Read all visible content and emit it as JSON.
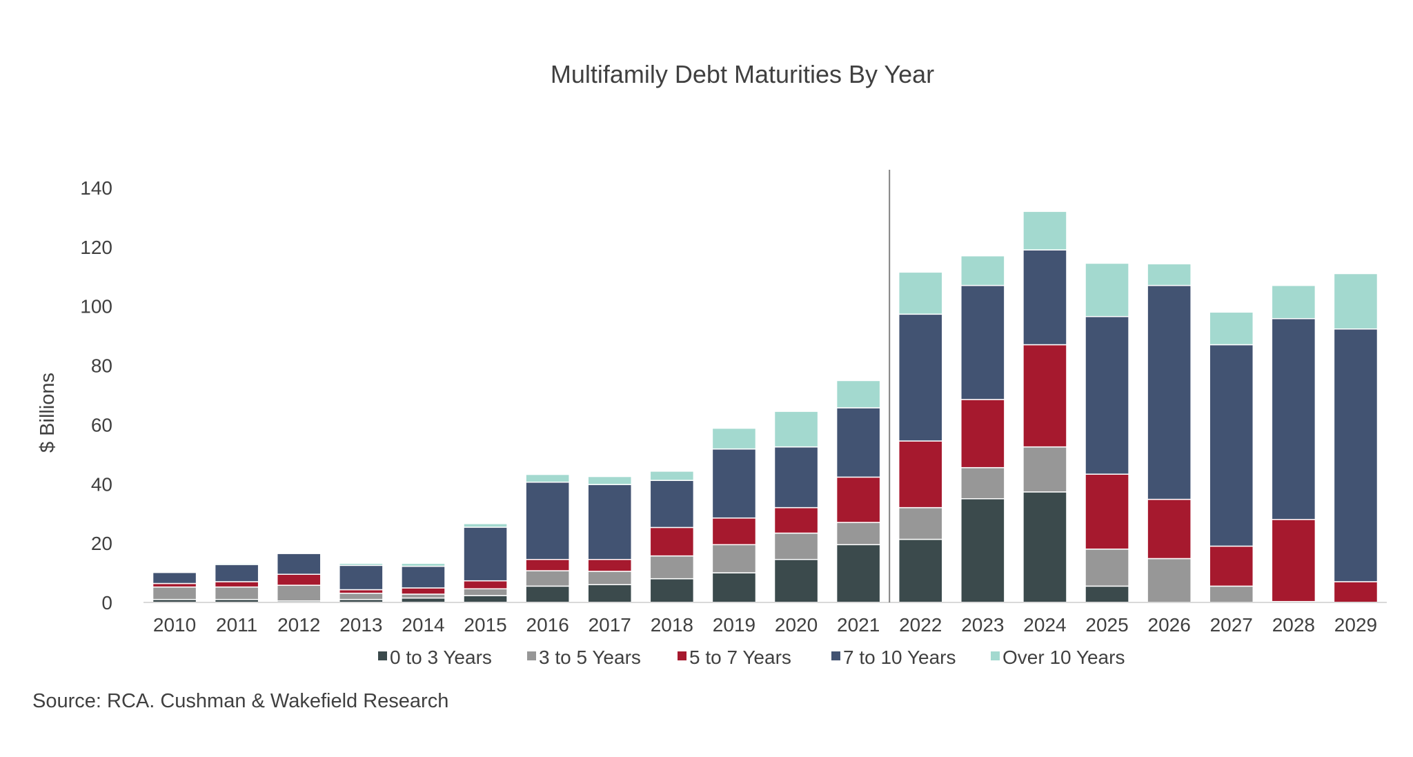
{
  "chart_data": {
    "type": "bar",
    "stacked": true,
    "title": "Multifamily Debt Maturities By Year",
    "xlabel": "",
    "ylabel": "$ Billions",
    "ylim": [
      0,
      140
    ],
    "yticks": [
      0,
      20,
      40,
      60,
      80,
      100,
      120,
      140
    ],
    "grid": false,
    "legend": "bottom",
    "divider_between": [
      "2021",
      "2022"
    ],
    "categories": [
      "2010",
      "2011",
      "2012",
      "2013",
      "2014",
      "2015",
      "2016",
      "2017",
      "2018",
      "2019",
      "2020",
      "2021",
      "2022",
      "2023",
      "2024",
      "2025",
      "2026",
      "2027",
      "2028",
      "2029"
    ],
    "series": [
      {
        "name": "0 to 3 Years",
        "color": "#3b4a4c",
        "values": [
          1,
          1,
          0.5,
          1,
          1.5,
          2.3,
          5.5,
          6,
          8,
          10,
          14.5,
          19.5,
          21.3,
          35,
          37.3,
          5.5,
          0,
          0,
          0,
          0
        ]
      },
      {
        "name": "3 to 5 Years",
        "color": "#979797",
        "values": [
          4.2,
          4.2,
          5.3,
          2.1,
          1.3,
          2.3,
          5.2,
          4.5,
          7.7,
          9.5,
          8.9,
          7.5,
          10.7,
          10.5,
          15.2,
          12.5,
          14.8,
          5.5,
          0.3,
          0
        ]
      },
      {
        "name": "5 to 7 Years",
        "color": "#a6192e",
        "values": [
          1.2,
          1.8,
          3.7,
          1.2,
          2.1,
          2.7,
          3.8,
          4,
          9.6,
          9,
          8.6,
          15.3,
          22.5,
          23,
          34.5,
          25.3,
          20,
          13.5,
          27.7,
          7
        ]
      },
      {
        "name": "7 to 10 Years",
        "color": "#425372",
        "values": [
          3.7,
          5.8,
          7,
          8.2,
          7.3,
          18.1,
          26.1,
          25.3,
          15.9,
          23.3,
          20.5,
          23.4,
          42.8,
          38.5,
          32,
          53.2,
          72.2,
          68,
          67.8,
          85.3
        ]
      },
      {
        "name": "Over 10 Years",
        "color": "#a3d9cf",
        "values": [
          0,
          0.4,
          0,
          0.7,
          1,
          1.2,
          2.6,
          2.7,
          3.1,
          7,
          12,
          9.2,
          14.2,
          10,
          13,
          18,
          7.3,
          11,
          11.2,
          18.7
        ]
      }
    ]
  },
  "source": "Source: RCA. Cushman & Wakefield Research"
}
